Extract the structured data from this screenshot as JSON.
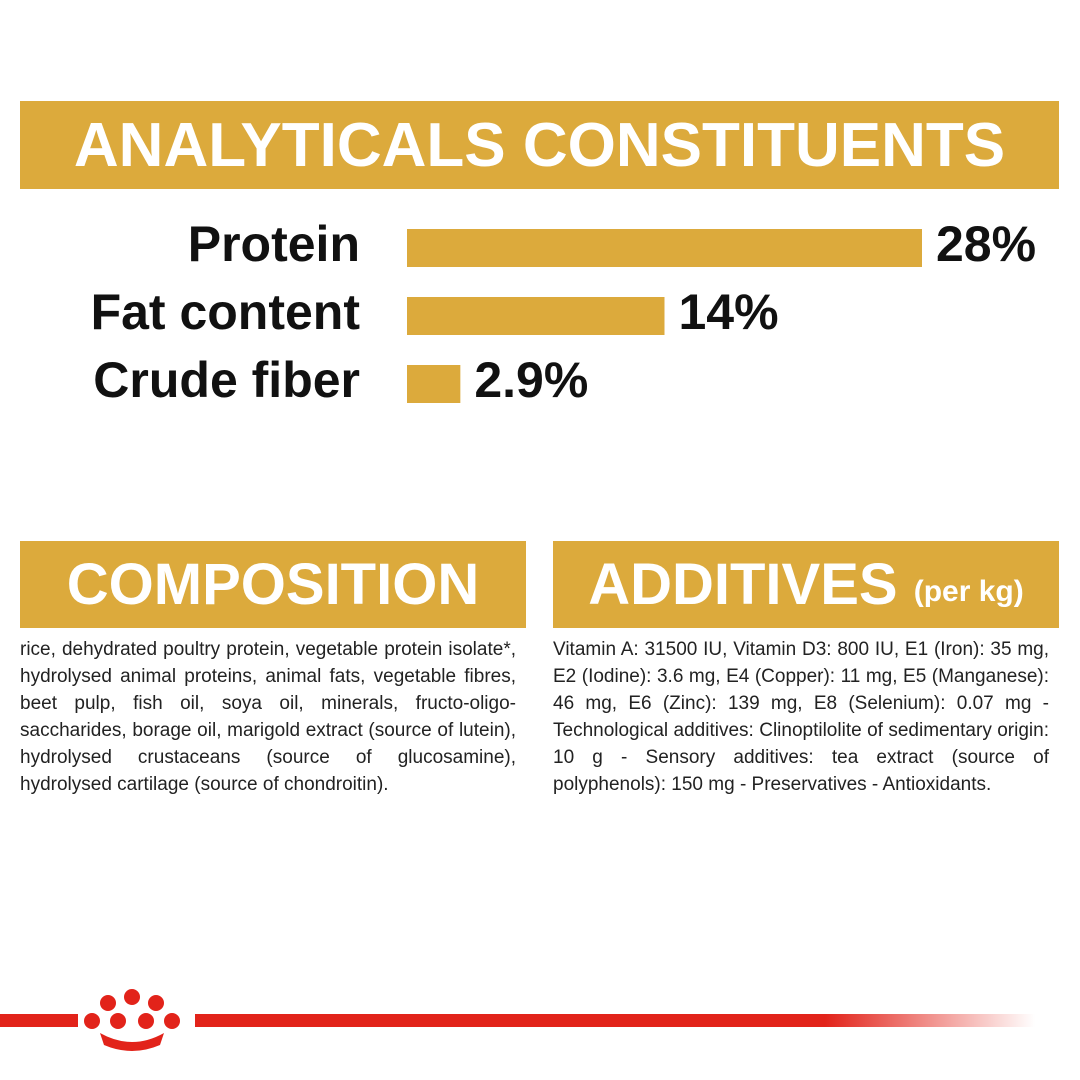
{
  "header": {
    "title": "ANALYTICALS CONSTITUENTS"
  },
  "chart_data": {
    "type": "bar",
    "orientation": "horizontal",
    "categories": [
      "Protein",
      "Fat content",
      "Crude fiber"
    ],
    "values": [
      28,
      14,
      2.9
    ],
    "value_labels": [
      "28%",
      "14%",
      "2.9%"
    ],
    "color": "#dcaa3c"
  },
  "composition": {
    "title": "COMPOSITION",
    "text": "rice, dehydrated poultry protein, vegetable protein isolate*, hydrolysed animal proteins, animal fats, vegetable fibres, beet pulp, fish oil, soya oil, minerals, fructo-oligo-saccharides, borage oil, marigold extract (source of lutein), hydrolysed crustaceans (source of glucosamine), hydrolysed cartilage (source of chondroitin)."
  },
  "additives": {
    "title": "ADDITIVES",
    "subtitle": "(per kg)",
    "text": "Vitamin A: 31500 IU, Vitamin D3: 800 IU, E1 (Iron): 35 mg, E2 (Iodine): 3.6 mg, E4 (Copper): 11 mg, E5 (Manganese): 46 mg, E6 (Zinc): 139 mg, E8 (Selenium): 0.07 mg - Technological additives: Clinoptilolite of sedimentary origin: 10 g - Sensory additives: tea extract (source of polyphenols): 150 mg - Preservatives - Antioxidants."
  }
}
